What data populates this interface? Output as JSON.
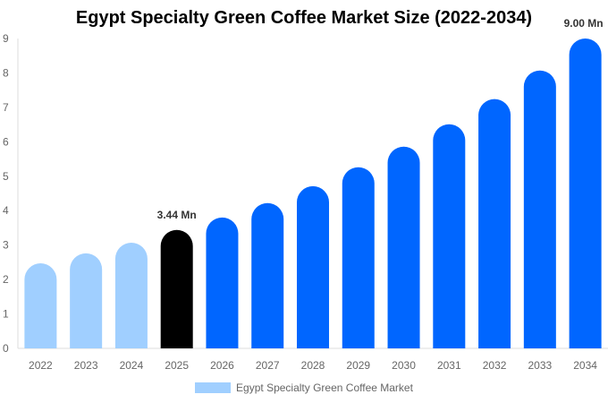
{
  "chart_data": {
    "type": "bar",
    "title": "Egypt Specialty Green Coffee Market Size (2022-2034)",
    "categories": [
      "2022",
      "2023",
      "2024",
      "2025",
      "2026",
      "2027",
      "2028",
      "2029",
      "2030",
      "2031",
      "2032",
      "2033",
      "2034"
    ],
    "series": [
      {
        "name": "Egypt Specialty Green Coffee Market",
        "values": [
          2.47,
          2.76,
          3.07,
          3.44,
          3.8,
          4.22,
          4.71,
          5.26,
          5.86,
          6.51,
          7.24,
          8.07,
          9.0
        ]
      }
    ],
    "bar_colors": [
      "#a0cfff",
      "#a0cfff",
      "#a0cfff",
      "#000000",
      "#0066ff",
      "#0066ff",
      "#0066ff",
      "#0066ff",
      "#0066ff",
      "#0066ff",
      "#0066ff",
      "#0066ff",
      "#0066ff"
    ],
    "data_labels": {
      "3": "3.44 Mn",
      "12": "9.00 Mn"
    },
    "ylim": [
      0,
      9
    ],
    "yticks": [
      0,
      1,
      2,
      3,
      4,
      5,
      6,
      7,
      8,
      9
    ],
    "xlabel": "",
    "ylabel": "",
    "grid": false,
    "legend": "bottom"
  }
}
